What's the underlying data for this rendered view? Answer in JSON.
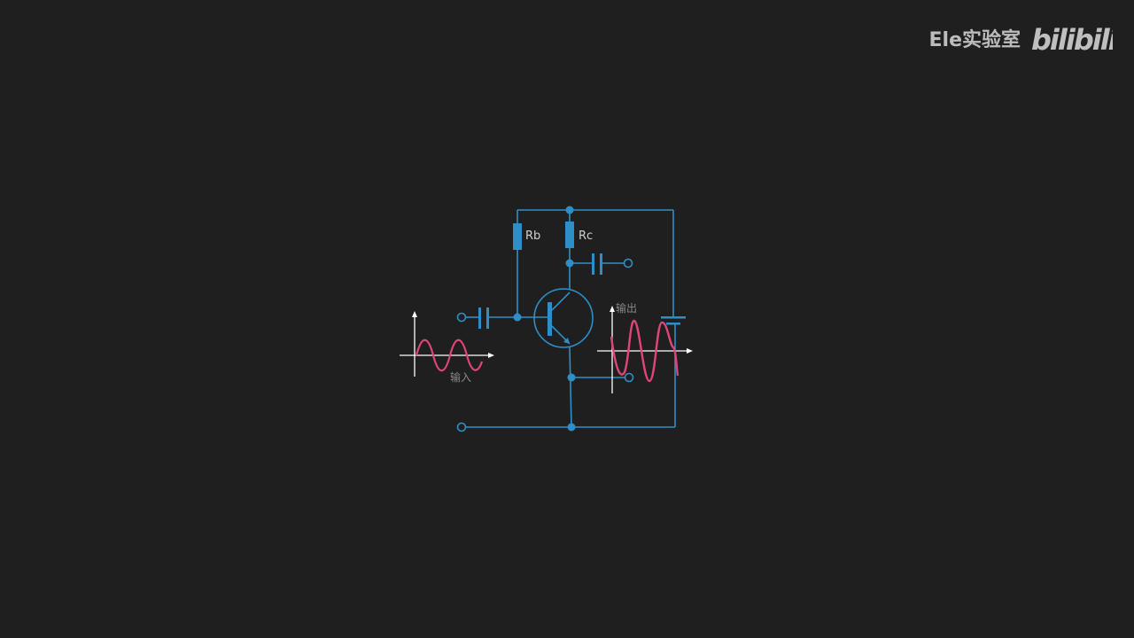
{
  "watermark": {
    "channel": "Ele实验室",
    "logo_text": "bilibili"
  },
  "circuit": {
    "resistor_base_label": "Rb",
    "resistor_collector_label": "Rc",
    "input_label": "输入",
    "output_label": "输出"
  },
  "colors": {
    "background": "#1f1f1f",
    "wire": "#2e8fc8",
    "signal": "#e0457a",
    "axis": "#ffffff"
  }
}
